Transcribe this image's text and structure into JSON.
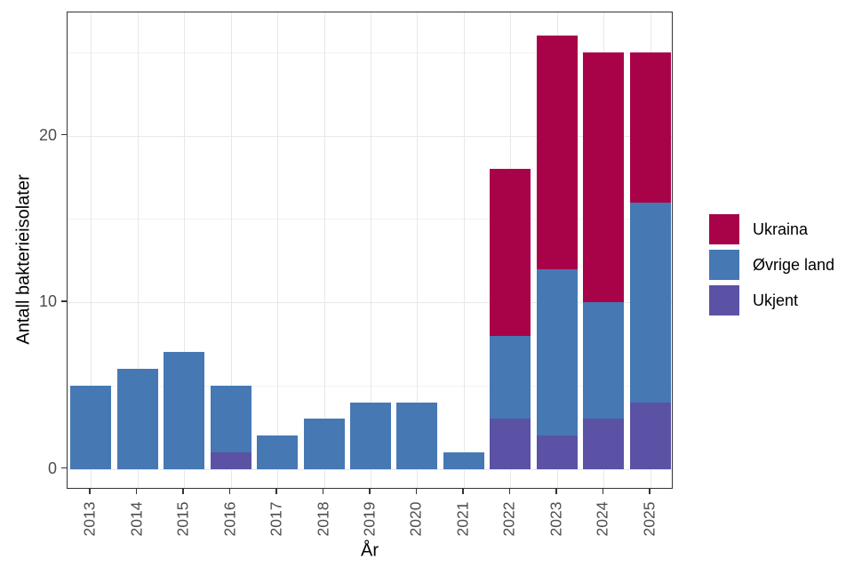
{
  "figure": {
    "background": "#ffffff"
  },
  "axes": {
    "x_title": "År",
    "y_title": "Antall bakterieisolater",
    "y_tick_labels": [
      "0",
      "10",
      "20"
    ],
    "x_tick_labels": [
      "2013",
      "2014",
      "2015",
      "2016",
      "2017",
      "2018",
      "2019",
      "2020",
      "2021",
      "2022",
      "2023",
      "2024",
      "2025"
    ]
  },
  "legend": {
    "position": "right",
    "entries": [
      "Ukraina",
      "Øvrige land",
      "Ukjent"
    ]
  },
  "chart_data": {
    "type": "bar",
    "stacked": true,
    "title": "",
    "xlabel": "År",
    "ylabel": "Antall bakterieisolater",
    "categories": [
      "2013",
      "2014",
      "2015",
      "2016",
      "2017",
      "2018",
      "2019",
      "2020",
      "2021",
      "2022",
      "2023",
      "2024",
      "2025"
    ],
    "series": [
      {
        "name": "Ukjent",
        "color": "#5B52A5",
        "values": [
          0,
          0,
          0,
          1,
          0,
          0,
          0,
          0,
          0,
          3,
          2,
          3,
          4
        ]
      },
      {
        "name": "Øvrige land",
        "color": "#4678B4",
        "values": [
          5,
          6,
          7,
          4,
          2,
          3,
          4,
          4,
          1,
          5,
          10,
          7,
          12
        ]
      },
      {
        "name": "Ukraina",
        "color": "#A80348",
        "values": [
          0,
          0,
          0,
          0,
          0,
          0,
          0,
          0,
          0,
          10,
          14,
          15,
          9
        ]
      }
    ],
    "stack_order_bottom_to_top": [
      "Ukjent",
      "Øvrige land",
      "Ukraina"
    ],
    "totals": [
      5,
      6,
      7,
      5,
      2,
      3,
      4,
      4,
      1,
      18,
      26,
      25,
      25
    ],
    "ylim": [
      -1.25,
      27.4
    ],
    "yticks_major": [
      0,
      10,
      20
    ],
    "yticks_minor": [
      5,
      15,
      25
    ],
    "grid": true,
    "legend_position": "right"
  }
}
